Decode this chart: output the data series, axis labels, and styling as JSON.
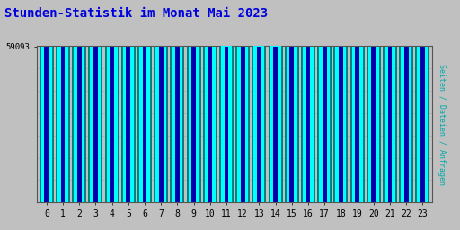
{
  "title": "Stunden-Statistik im Monat Mai 2023",
  "title_color": "#0000dd",
  "title_fontsize": 10,
  "ylabel_right": "Seiten / Dateien / Anfragen",
  "ylabel_right_color": "#00aaaa",
  "background_color": "#c0c0c0",
  "plot_bg_color": "#c0c0c0",
  "bar_color_cyan": "#00ffff",
  "bar_color_teal": "#008080",
  "bar_color_blue": "#0000aa",
  "hours": [
    0,
    1,
    2,
    3,
    4,
    5,
    6,
    7,
    8,
    9,
    10,
    11,
    12,
    13,
    14,
    15,
    16,
    17,
    18,
    19,
    20,
    21,
    22,
    23
  ],
  "ytick_label": "59093",
  "ymin": 58800,
  "ymax": 59200,
  "ytick_val": 59093,
  "bar_heights": [
    58930,
    58920,
    58940,
    58970,
    59010,
    59010,
    59000,
    59050,
    59030,
    59040,
    59080,
    59100,
    59090,
    59100,
    59130,
    59070,
    59050,
    59020,
    59010,
    58960,
    58960,
    59000,
    59010,
    59010
  ],
  "anfragen_heights": [
    58820,
    58820,
    58820,
    58820,
    58820,
    58820,
    58820,
    58820,
    58820,
    58820,
    58820,
    58825,
    58820,
    58825,
    58820,
    58820,
    58820,
    58820,
    58820,
    58820,
    58820,
    58820,
    58820,
    58820
  ]
}
